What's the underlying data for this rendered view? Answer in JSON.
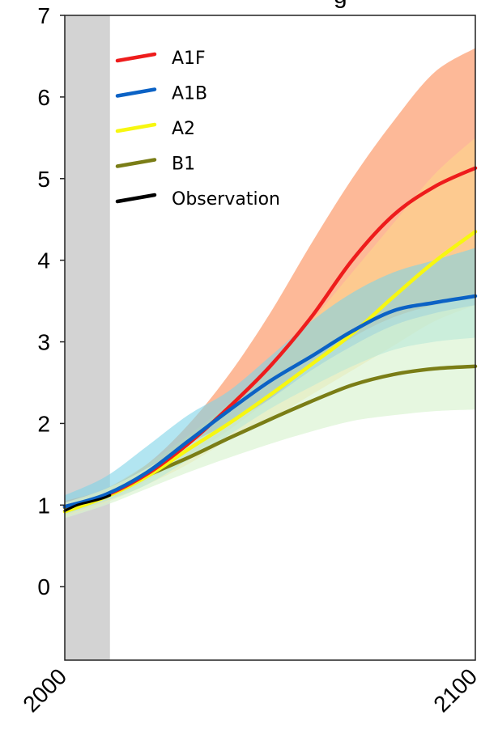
{
  "chart_data": {
    "type": "line",
    "title_fragment": "g",
    "xlabel": "",
    "ylabel": "",
    "xlim": [
      2000,
      2100
    ],
    "ylim": [
      -0.9,
      7.0
    ],
    "y_ticks": [
      "0",
      "1",
      "2",
      "3",
      "4",
      "5",
      "6",
      "7"
    ],
    "x_ticks": [
      "2000",
      "2100"
    ],
    "shaded_region": [
      2000,
      2011
    ],
    "legend_position": "top-left",
    "series": [
      {
        "name": "A1F",
        "color": "#ee1c1c",
        "band_color": "#fc9b6c",
        "x": [
          2000,
          2010,
          2020,
          2030,
          2040,
          2050,
          2060,
          2070,
          2080,
          2090,
          2100
        ],
        "values": [
          0.98,
          1.12,
          1.38,
          1.75,
          2.2,
          2.7,
          3.3,
          4.0,
          4.55,
          4.9,
          5.13
        ],
        "upper": [
          1.05,
          1.2,
          1.5,
          1.98,
          2.6,
          3.35,
          4.2,
          5.0,
          5.7,
          6.3,
          6.6
        ],
        "lower": [
          0.9,
          1.05,
          1.3,
          1.6,
          1.92,
          2.3,
          2.7,
          3.05,
          3.3,
          3.45,
          3.55
        ]
      },
      {
        "name": "A1B",
        "color": "#0b62c5",
        "band_color": "#7fd4e8",
        "x": [
          2000,
          2010,
          2020,
          2030,
          2040,
          2050,
          2060,
          2070,
          2080,
          2090,
          2100
        ],
        "values": [
          0.98,
          1.13,
          1.4,
          1.78,
          2.16,
          2.52,
          2.82,
          3.13,
          3.38,
          3.48,
          3.56
        ],
        "upper": [
          1.12,
          1.35,
          1.72,
          2.1,
          2.4,
          2.82,
          3.25,
          3.6,
          3.85,
          4.0,
          4.15
        ],
        "lower": [
          0.88,
          1.05,
          1.25,
          1.55,
          1.86,
          2.18,
          2.45,
          2.7,
          2.9,
          3.0,
          3.05
        ]
      },
      {
        "name": "A2",
        "color": "#f7f710",
        "band_color": "#fdd98a",
        "x": [
          2000,
          2010,
          2020,
          2030,
          2040,
          2050,
          2060,
          2070,
          2080,
          2090,
          2100
        ],
        "values": [
          0.92,
          1.1,
          1.35,
          1.68,
          2.0,
          2.35,
          2.72,
          3.1,
          3.55,
          3.98,
          4.35
        ],
        "upper": [
          1.0,
          1.2,
          1.5,
          1.85,
          2.25,
          2.7,
          3.25,
          3.85,
          4.45,
          5.05,
          5.5
        ],
        "lower": [
          0.86,
          1.03,
          1.25,
          1.5,
          1.8,
          2.05,
          2.35,
          2.65,
          2.95,
          3.25,
          3.45
        ]
      },
      {
        "name": "B1",
        "color": "#7a7d16",
        "band_color": "#d8f2cf",
        "x": [
          2000,
          2010,
          2020,
          2030,
          2040,
          2050,
          2060,
          2070,
          2080,
          2090,
          2100
        ],
        "values": [
          0.97,
          1.12,
          1.36,
          1.58,
          1.82,
          2.05,
          2.27,
          2.47,
          2.6,
          2.67,
          2.7
        ],
        "upper": [
          1.03,
          1.2,
          1.45,
          1.75,
          2.0,
          2.3,
          2.65,
          2.95,
          3.2,
          3.35,
          3.45
        ],
        "lower": [
          0.84,
          1.0,
          1.2,
          1.4,
          1.58,
          1.75,
          1.9,
          2.03,
          2.1,
          2.15,
          2.17
        ]
      },
      {
        "name": "Observation",
        "color": "#000000",
        "x": [
          2000,
          2003,
          2006,
          2009,
          2011
        ],
        "values": [
          0.93,
          1.0,
          1.04,
          1.08,
          1.12
        ]
      }
    ]
  }
}
